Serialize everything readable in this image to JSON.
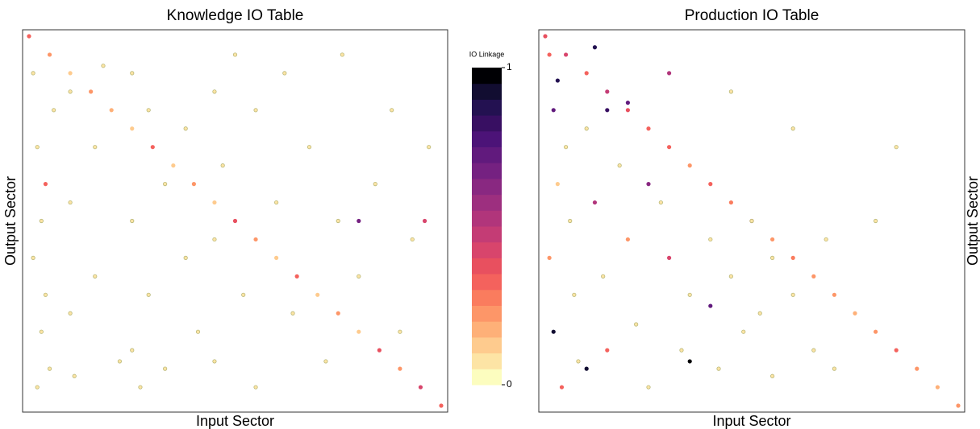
{
  "chart_data": [
    {
      "type": "scatter",
      "title": "Knowledge IO Table",
      "xlabel": "Input Sector",
      "ylabel": "Output Sector",
      "ylabel_side": "left",
      "xlim": [
        0,
        100
      ],
      "ylim": [
        100,
        0
      ],
      "x": [
        0,
        5,
        10,
        15,
        20,
        25,
        30,
        35,
        40,
        45,
        50,
        55,
        60,
        65,
        70,
        75,
        80,
        85,
        90,
        95,
        100,
        1,
        2,
        3,
        4,
        5,
        2,
        6,
        1,
        3,
        4,
        10,
        10,
        10,
        11,
        16,
        16,
        25,
        25,
        25,
        27,
        29,
        29,
        33,
        33,
        38,
        38,
        41,
        45,
        45,
        45,
        47,
        52,
        55,
        55,
        60,
        62,
        64,
        68,
        72,
        75,
        76,
        80,
        84,
        88,
        90,
        93,
        97,
        80,
        96,
        22,
        18,
        50
      ],
      "y": [
        0,
        5,
        10,
        15,
        20,
        25,
        30,
        35,
        40,
        45,
        50,
        55,
        60,
        65,
        70,
        75,
        80,
        85,
        90,
        95,
        100,
        10,
        30,
        50,
        70,
        90,
        95,
        20,
        60,
        80,
        40,
        15,
        45,
        75,
        92,
        30,
        65,
        10,
        50,
        85,
        95,
        20,
        70,
        40,
        90,
        25,
        60,
        80,
        15,
        55,
        88,
        35,
        70,
        20,
        95,
        45,
        10,
        75,
        30,
        88,
        50,
        5,
        65,
        40,
        20,
        80,
        55,
        30,
        50,
        50,
        88,
        8,
        5
      ],
      "values": [
        0.3,
        0.2,
        0.1,
        0.2,
        0.15,
        0.1,
        0.3,
        0.1,
        0.2,
        0.1,
        0.35,
        0.2,
        0.1,
        0.3,
        0.1,
        0.2,
        0.1,
        0.35,
        0.2,
        0.4,
        0.3,
        0.05,
        0.05,
        0.05,
        0.05,
        0.05,
        0.05,
        0.05,
        0.05,
        0.05,
        0.3,
        0.05,
        0.05,
        0.05,
        0.05,
        0.05,
        0.05,
        0.05,
        0.05,
        0.05,
        0.05,
        0.05,
        0.05,
        0.05,
        0.05,
        0.05,
        0.05,
        0.05,
        0.05,
        0.05,
        0.05,
        0.05,
        0.05,
        0.05,
        0.05,
        0.05,
        0.05,
        0.05,
        0.05,
        0.05,
        0.05,
        0.05,
        0.05,
        0.05,
        0.05,
        0.05,
        0.05,
        0.05,
        0.65,
        0.4,
        0.05,
        0.05,
        0.05
      ],
      "colorbar": {
        "title": "IO Linkage",
        "lim": [
          0,
          1
        ],
        "ticks": [
          0,
          1
        ],
        "colors": [
          "#fcfdbf",
          "#fde4a5",
          "#fecb8e",
          "#feb078",
          "#fd9668",
          "#fa7c5e",
          "#f4625d",
          "#e8505f",
          "#d8456c",
          "#c43c75",
          "#b1357b",
          "#9d2f7f",
          "#892881",
          "#752181",
          "#611a7d",
          "#4c1378",
          "#380f62",
          "#231151",
          "#120d31",
          "#000004"
        ]
      }
    },
    {
      "type": "scatter",
      "title": "Production IO Table",
      "xlabel": "Input Sector",
      "ylabel": "Output Sector",
      "ylabel_side": "right",
      "xlim": [
        0,
        100
      ],
      "ylim": [
        100,
        0
      ],
      "x": [
        0,
        5,
        10,
        15,
        20,
        25,
        30,
        35,
        40,
        45,
        50,
        55,
        60,
        65,
        70,
        75,
        80,
        85,
        90,
        95,
        100,
        1,
        2,
        3,
        1,
        2,
        4,
        5,
        6,
        7,
        8,
        3,
        10,
        12,
        14,
        15,
        18,
        20,
        22,
        25,
        28,
        30,
        33,
        35,
        40,
        42,
        45,
        48,
        52,
        55,
        60,
        65,
        70,
        15,
        25,
        40,
        35,
        10,
        50,
        55,
        68,
        80,
        85,
        60,
        45,
        30,
        12,
        20
      ],
      "y": [
        0,
        5,
        10,
        15,
        20,
        25,
        30,
        35,
        40,
        45,
        50,
        55,
        60,
        65,
        70,
        75,
        80,
        85,
        90,
        95,
        100,
        5,
        20,
        40,
        60,
        80,
        95,
        30,
        50,
        70,
        88,
        12,
        25,
        45,
        65,
        85,
        35,
        55,
        78,
        95,
        45,
        60,
        85,
        70,
        55,
        90,
        65,
        80,
        75,
        92,
        70,
        85,
        90,
        20,
        40,
        73,
        88,
        90,
        50,
        60,
        55,
        50,
        30,
        25,
        15,
        10,
        3,
        18
      ],
      "values": [
        0.35,
        0.4,
        0.3,
        0.45,
        0.35,
        0.3,
        0.3,
        0.2,
        0.3,
        0.25,
        0.3,
        0.2,
        0.25,
        0.2,
        0.2,
        0.15,
        0.2,
        0.3,
        0.2,
        0.15,
        0.2,
        0.3,
        0.7,
        0.1,
        0.2,
        0.9,
        0.3,
        0.05,
        0.05,
        0.05,
        0.05,
        0.85,
        0.05,
        0.5,
        0.05,
        0.3,
        0.05,
        0.2,
        0.05,
        0.05,
        0.05,
        0.4,
        0.05,
        0.05,
        0.05,
        0.05,
        0.05,
        0.05,
        0.05,
        0.05,
        0.05,
        0.05,
        0.05,
        0.8,
        0.6,
        0.7,
        0.95,
        0.9,
        0.05,
        0.05,
        0.05,
        0.05,
        0.05,
        0.05,
        0.05,
        0.5,
        0.85,
        0.7
      ]
    }
  ]
}
